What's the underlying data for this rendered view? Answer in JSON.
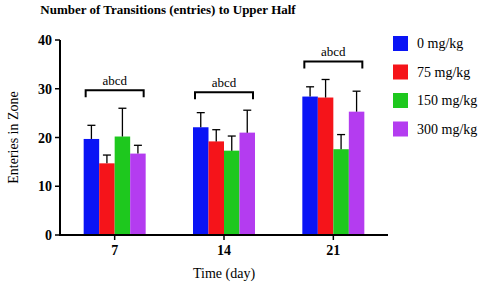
{
  "chart_data": {
    "type": "bar",
    "title": "Number of Transitions (entries) to Upper Half",
    "x_label": "Time (day)",
    "y_label": "Enteries in Zone",
    "categories": [
      "7",
      "14",
      "21"
    ],
    "series": [
      {
        "name": "0 mg/kg",
        "color": "#0a14f5",
        "values": [
          19.7,
          22.1,
          28.4
        ],
        "errors": [
          2.8,
          3.0,
          2.0
        ]
      },
      {
        "name": "75 mg/kg",
        "color": "#f5141a",
        "values": [
          14.7,
          19.2,
          28.2
        ],
        "errors": [
          1.7,
          2.4,
          3.7
        ]
      },
      {
        "name": "150 mg/kg",
        "color": "#1ec81e",
        "values": [
          20.2,
          17.3,
          17.6
        ],
        "errors": [
          5.8,
          3.0,
          3.0
        ]
      },
      {
        "name": "300 mg/kg",
        "color": "#b43cf0",
        "values": [
          16.7,
          21.0,
          25.3
        ],
        "errors": [
          1.7,
          4.6,
          4.2
        ]
      }
    ],
    "annotations": [
      {
        "text": "abcd",
        "category": "7"
      },
      {
        "text": "abcd",
        "category": "14"
      },
      {
        "text": "abcd",
        "category": "21"
      }
    ],
    "ylim": [
      0,
      40
    ],
    "yticks": [
      0,
      10,
      20,
      30,
      40
    ],
    "grid": false,
    "legend": "right"
  }
}
